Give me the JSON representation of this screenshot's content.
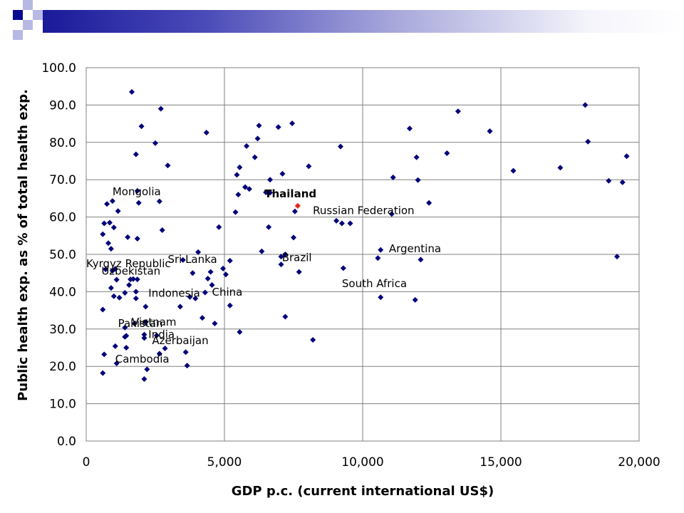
{
  "theme": {
    "marker_color": "#00007a",
    "highlight_color": "#e8231a",
    "grid_color": "#808080",
    "header_color": "#1a1a9a"
  },
  "chart_data": {
    "type": "scatter",
    "title": "",
    "xlabel": "GDP p.c. (current international US$)",
    "ylabel": "Public health exp. as % of total health exp.",
    "xlim": [
      0,
      20000
    ],
    "ylim": [
      0,
      100
    ],
    "x_ticks": [
      0,
      5000,
      10000,
      15000,
      20000
    ],
    "x_tick_labels": [
      "0",
      "5,000",
      "10,000",
      "15,000",
      "20,000"
    ],
    "y_ticks": [
      0,
      10,
      20,
      30,
      40,
      50,
      60,
      70,
      80,
      90,
      100
    ],
    "y_tick_labels": [
      "0.0",
      "10.0",
      "20.0",
      "30.0",
      "40.0",
      "50.0",
      "60.0",
      "70.0",
      "80.0",
      "90.0",
      "100.0"
    ],
    "grid": true,
    "highlight": {
      "name": "Thailand",
      "x": 7650,
      "y": 63
    },
    "annotations": [
      {
        "text": "Mongolia",
        "x": 950,
        "y": 65.8
      },
      {
        "text": "Thailand",
        "x": 6450,
        "y": 65.3,
        "bold": true
      },
      {
        "text": "Russian Federation",
        "x": 8200,
        "y": 60.8
      },
      {
        "text": "Argentina",
        "x": 10950,
        "y": 50.6
      },
      {
        "text": "Sri Lanka",
        "x": 2950,
        "y": 47.7
      },
      {
        "text": "Kyrgyz Republic",
        "x": 0,
        "y": 46.6
      },
      {
        "text": "Uzbekistan",
        "x": 550,
        "y": 44.6
      },
      {
        "text": "Brazil",
        "x": 7080,
        "y": 48.2
      },
      {
        "text": "South Africa",
        "x": 9250,
        "y": 41.2
      },
      {
        "text": "Indonesia",
        "x": 2250,
        "y": 38.6
      },
      {
        "text": "China",
        "x": 4550,
        "y": 38.9
      },
      {
        "text": "Pakistan",
        "x": 1150,
        "y": 30.5
      },
      {
        "text": "Vietnam",
        "x": 1650,
        "y": 30.9
      },
      {
        "text": "India",
        "x": 2250,
        "y": 27.6
      },
      {
        "text": "Azerbaijan",
        "x": 2380,
        "y": 26.0
      },
      {
        "text": "Cambodia",
        "x": 1050,
        "y": 21.0
      }
    ],
    "points": [
      [
        1650,
        93.5
      ],
      [
        2700,
        89
      ],
      [
        2000,
        84.3
      ],
      [
        4350,
        82.6
      ],
      [
        1800,
        76.8
      ],
      [
        2500,
        79.8
      ],
      [
        2950,
        73.8
      ],
      [
        1850,
        67
      ],
      [
        1900,
        63.8
      ],
      [
        2650,
        64.2
      ],
      [
        750,
        63.5
      ],
      [
        950,
        64.3
      ],
      [
        1150,
        61.6
      ],
      [
        650,
        58.3
      ],
      [
        850,
        58.5
      ],
      [
        1000,
        57.2
      ],
      [
        600,
        55.4
      ],
      [
        800,
        53
      ],
      [
        900,
        51.5
      ],
      [
        1500,
        54.6
      ],
      [
        1850,
        54.2
      ],
      [
        2750,
        56.5
      ],
      [
        4050,
        50.6
      ],
      [
        3500,
        48.5
      ],
      [
        4800,
        57.3
      ],
      [
        5400,
        61.3
      ],
      [
        5500,
        66
      ],
      [
        5750,
        68
      ],
      [
        5900,
        67.5
      ],
      [
        5450,
        71.3
      ],
      [
        5550,
        73.3
      ],
      [
        5800,
        79
      ],
      [
        6100,
        76
      ],
      [
        6250,
        84.5
      ],
      [
        6200,
        81
      ],
      [
        6500,
        66.6
      ],
      [
        6650,
        66.5
      ],
      [
        6650,
        70
      ],
      [
        6950,
        84.1
      ],
      [
        7100,
        71.6
      ],
      [
        7450,
        85.1
      ],
      [
        7550,
        61.5
      ],
      [
        8050,
        73.6
      ],
      [
        7500,
        54.5
      ],
      [
        6600,
        57.3
      ],
      [
        6350,
        50.8
      ],
      [
        7050,
        47.3
      ],
      [
        7050,
        49.4
      ],
      [
        7200,
        50
      ],
      [
        7700,
        45.3
      ],
      [
        7200,
        33.3
      ],
      [
        5200,
        48.3
      ],
      [
        5200,
        36.3
      ],
      [
        4950,
        46.2
      ],
      [
        5050,
        44.6
      ],
      [
        4500,
        45.3
      ],
      [
        4550,
        41.8
      ],
      [
        4650,
        31.5
      ],
      [
        4200,
        33
      ],
      [
        3650,
        20.2
      ],
      [
        3600,
        23.8
      ],
      [
        3400,
        36
      ],
      [
        3950,
        38.2
      ],
      [
        3750,
        38.6
      ],
      [
        3850,
        45
      ],
      [
        4300,
        39.8
      ],
      [
        4400,
        43.5
      ],
      [
        2150,
        36
      ],
      [
        1800,
        38.2
      ],
      [
        1800,
        40
      ],
      [
        1600,
        43.3
      ],
      [
        1700,
        43.4
      ],
      [
        1850,
        43.3
      ],
      [
        1550,
        41.8
      ],
      [
        1400,
        39.7
      ],
      [
        1200,
        38.4
      ],
      [
        1100,
        43.2
      ],
      [
        1050,
        46.1
      ],
      [
        950,
        45.6
      ],
      [
        900,
        41
      ],
      [
        1000,
        38.8
      ],
      [
        700,
        46
      ],
      [
        600,
        35.2
      ],
      [
        2150,
        31.8
      ],
      [
        2550,
        28.3
      ],
      [
        2100,
        28.5
      ],
      [
        2100,
        27.6
      ],
      [
        2650,
        23.4
      ],
      [
        2850,
        24.8
      ],
      [
        1450,
        28.2
      ],
      [
        1400,
        27.9
      ],
      [
        1400,
        30.4
      ],
      [
        1450,
        25
      ],
      [
        1050,
        25.4
      ],
      [
        1100,
        20.8
      ],
      [
        650,
        23.2
      ],
      [
        600,
        18.2
      ],
      [
        2100,
        16.6
      ],
      [
        2200,
        19.2
      ],
      [
        1750,
        31.5
      ],
      [
        5550,
        29.2
      ],
      [
        8200,
        27.1
      ],
      [
        9050,
        59
      ],
      [
        9250,
        58.3
      ],
      [
        9550,
        58.3
      ],
      [
        9200,
        78.9
      ],
      [
        9300,
        46.3
      ],
      [
        10550,
        49
      ],
      [
        10650,
        51.2
      ],
      [
        10650,
        38.5
      ],
      [
        11050,
        60.8
      ],
      [
        11100,
        70.6
      ],
      [
        11700,
        83.7
      ],
      [
        11950,
        76
      ],
      [
        12000,
        69.9
      ],
      [
        11900,
        37.8
      ],
      [
        12100,
        48.6
      ],
      [
        12400,
        63.8
      ],
      [
        13050,
        77.1
      ],
      [
        13450,
        88.3
      ],
      [
        14600,
        83
      ],
      [
        15450,
        72.4
      ],
      [
        17150,
        73.2
      ],
      [
        18050,
        90
      ],
      [
        18150,
        80.2
      ],
      [
        18900,
        69.7
      ],
      [
        19400,
        69.3
      ],
      [
        19550,
        76.3
      ],
      [
        19200,
        49.4
      ]
    ]
  }
}
